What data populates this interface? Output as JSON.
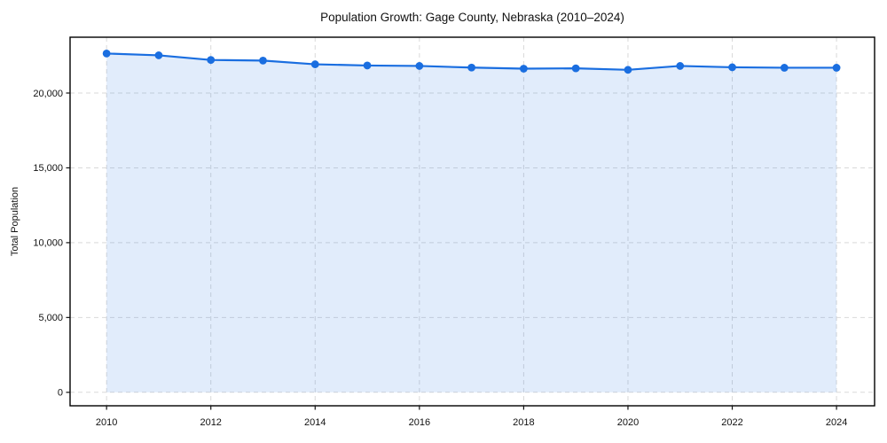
{
  "figure": {
    "background": "#ffffff"
  },
  "chart_data": {
    "type": "area",
    "title": "Population Growth: Gage County, Nebraska (2010–2024)",
    "xlabel": "",
    "ylabel": "Total Population",
    "x": [
      2010,
      2011,
      2012,
      2013,
      2014,
      2015,
      2016,
      2017,
      2018,
      2019,
      2020,
      2021,
      2022,
      2023,
      2024
    ],
    "series": [
      {
        "name": "Total Population",
        "values": [
          22640,
          22520,
          22210,
          22170,
          21920,
          21840,
          21810,
          21700,
          21630,
          21650,
          21550,
          21810,
          21720,
          21690,
          21690
        ]
      }
    ],
    "xticks": [
      2010,
      2012,
      2014,
      2016,
      2018,
      2020,
      2022,
      2024
    ],
    "yticks": [
      0,
      5000,
      10000,
      15000,
      20000
    ],
    "xlim": [
      2009.3,
      2024.73
    ],
    "ylim": [
      -900,
      23730
    ],
    "grid": "dashed",
    "grid_color": "#d9d9d9",
    "legend": "none",
    "marker": "circle",
    "line_color": "#1a6ee0",
    "fill_color": "rgba(26,110,224,0.13)",
    "spine_color": "#000000",
    "tick_color": "#111111"
  }
}
